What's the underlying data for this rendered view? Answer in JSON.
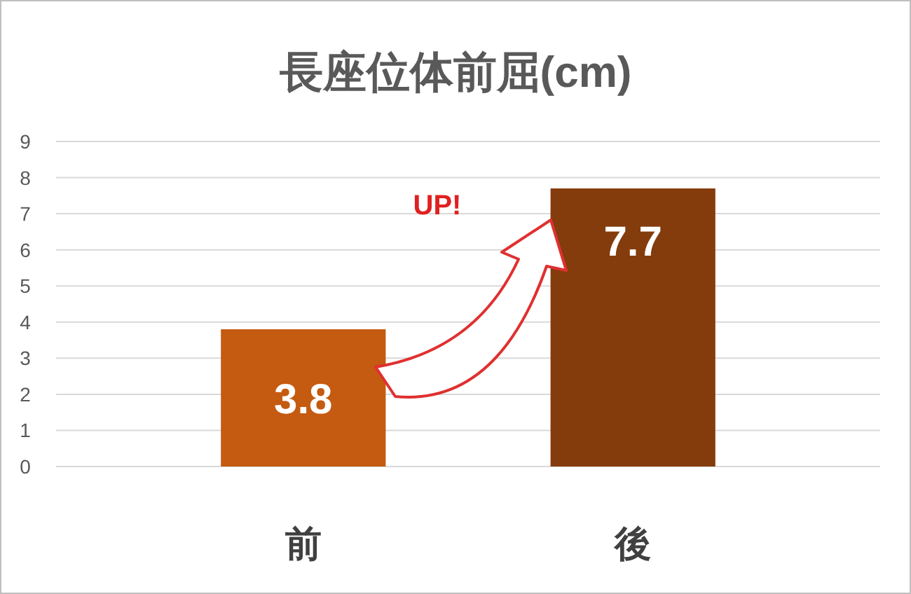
{
  "chart_data": {
    "type": "bar",
    "title": "長座位体前屈(cm)",
    "categories": [
      "前",
      "後"
    ],
    "values": [
      3.8,
      7.7
    ],
    "colors": [
      "#c55a11",
      "#843c0c"
    ],
    "ylim": [
      0,
      9
    ],
    "yticks": [
      0,
      1,
      2,
      3,
      4,
      5,
      6,
      7,
      8,
      9
    ],
    "grid": "y",
    "data_labels": true,
    "annotations": [
      "UP!"
    ]
  }
}
